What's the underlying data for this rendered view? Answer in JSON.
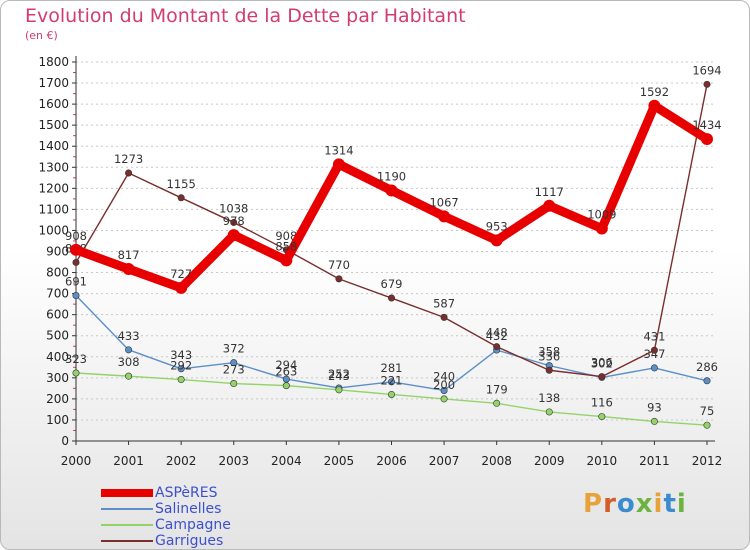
{
  "title": "Evolution du Montant de la Dette par Habitant",
  "subtitle": "(en €)",
  "brand": "Proxiti",
  "colors": {
    "title": "#d23c72",
    "legend_text": "#3d50cc",
    "axis": "#333333",
    "grid": "#c8c8c8",
    "brand": [
      "#e8a23a",
      "#d45e2a",
      "#3a8ccf",
      "#6cb33f",
      "#e8a23a",
      "#3a8ccf",
      "#6cb33f"
    ]
  },
  "chart_data": {
    "type": "line",
    "title": "Evolution du Montant de la Dette par Habitant",
    "subtitle": "(en €)",
    "xlabel": "",
    "ylabel": "",
    "categories": [
      "2000",
      "2001",
      "2002",
      "2003",
      "2004",
      "2005",
      "2006",
      "2007",
      "2008",
      "2009",
      "2010",
      "2011",
      "2012"
    ],
    "ylim": [
      0,
      1800
    ],
    "yticks": [
      0,
      100,
      200,
      300,
      400,
      500,
      600,
      700,
      800,
      900,
      1000,
      1100,
      1200,
      1300,
      1400,
      1500,
      1600,
      1700,
      1800
    ],
    "grid": true,
    "legend_position": "bottom-left",
    "series": [
      {
        "name": "ASPèRES",
        "color": "#e80000",
        "emphasis": true,
        "values": [
          908,
          817,
          727,
          978,
          858,
          1314,
          1190,
          1067,
          953,
          1117,
          1009,
          1592,
          1434
        ]
      },
      {
        "name": "Salinelles",
        "color": "#5b8fc7",
        "emphasis": false,
        "values": [
          691,
          433,
          343,
          372,
          294,
          252,
          281,
          240,
          432,
          358,
          302,
          347,
          286
        ]
      },
      {
        "name": "Campagne",
        "color": "#94d36a",
        "emphasis": false,
        "values": [
          323,
          308,
          292,
          273,
          263,
          243,
          221,
          200,
          179,
          138,
          116,
          93,
          75
        ]
      },
      {
        "name": "Garrigues",
        "color": "#7a2e2e",
        "emphasis": false,
        "values": [
          848,
          1273,
          1155,
          1038,
          908,
          770,
          679,
          587,
          448,
          336,
          306,
          431,
          1694
        ]
      }
    ]
  }
}
